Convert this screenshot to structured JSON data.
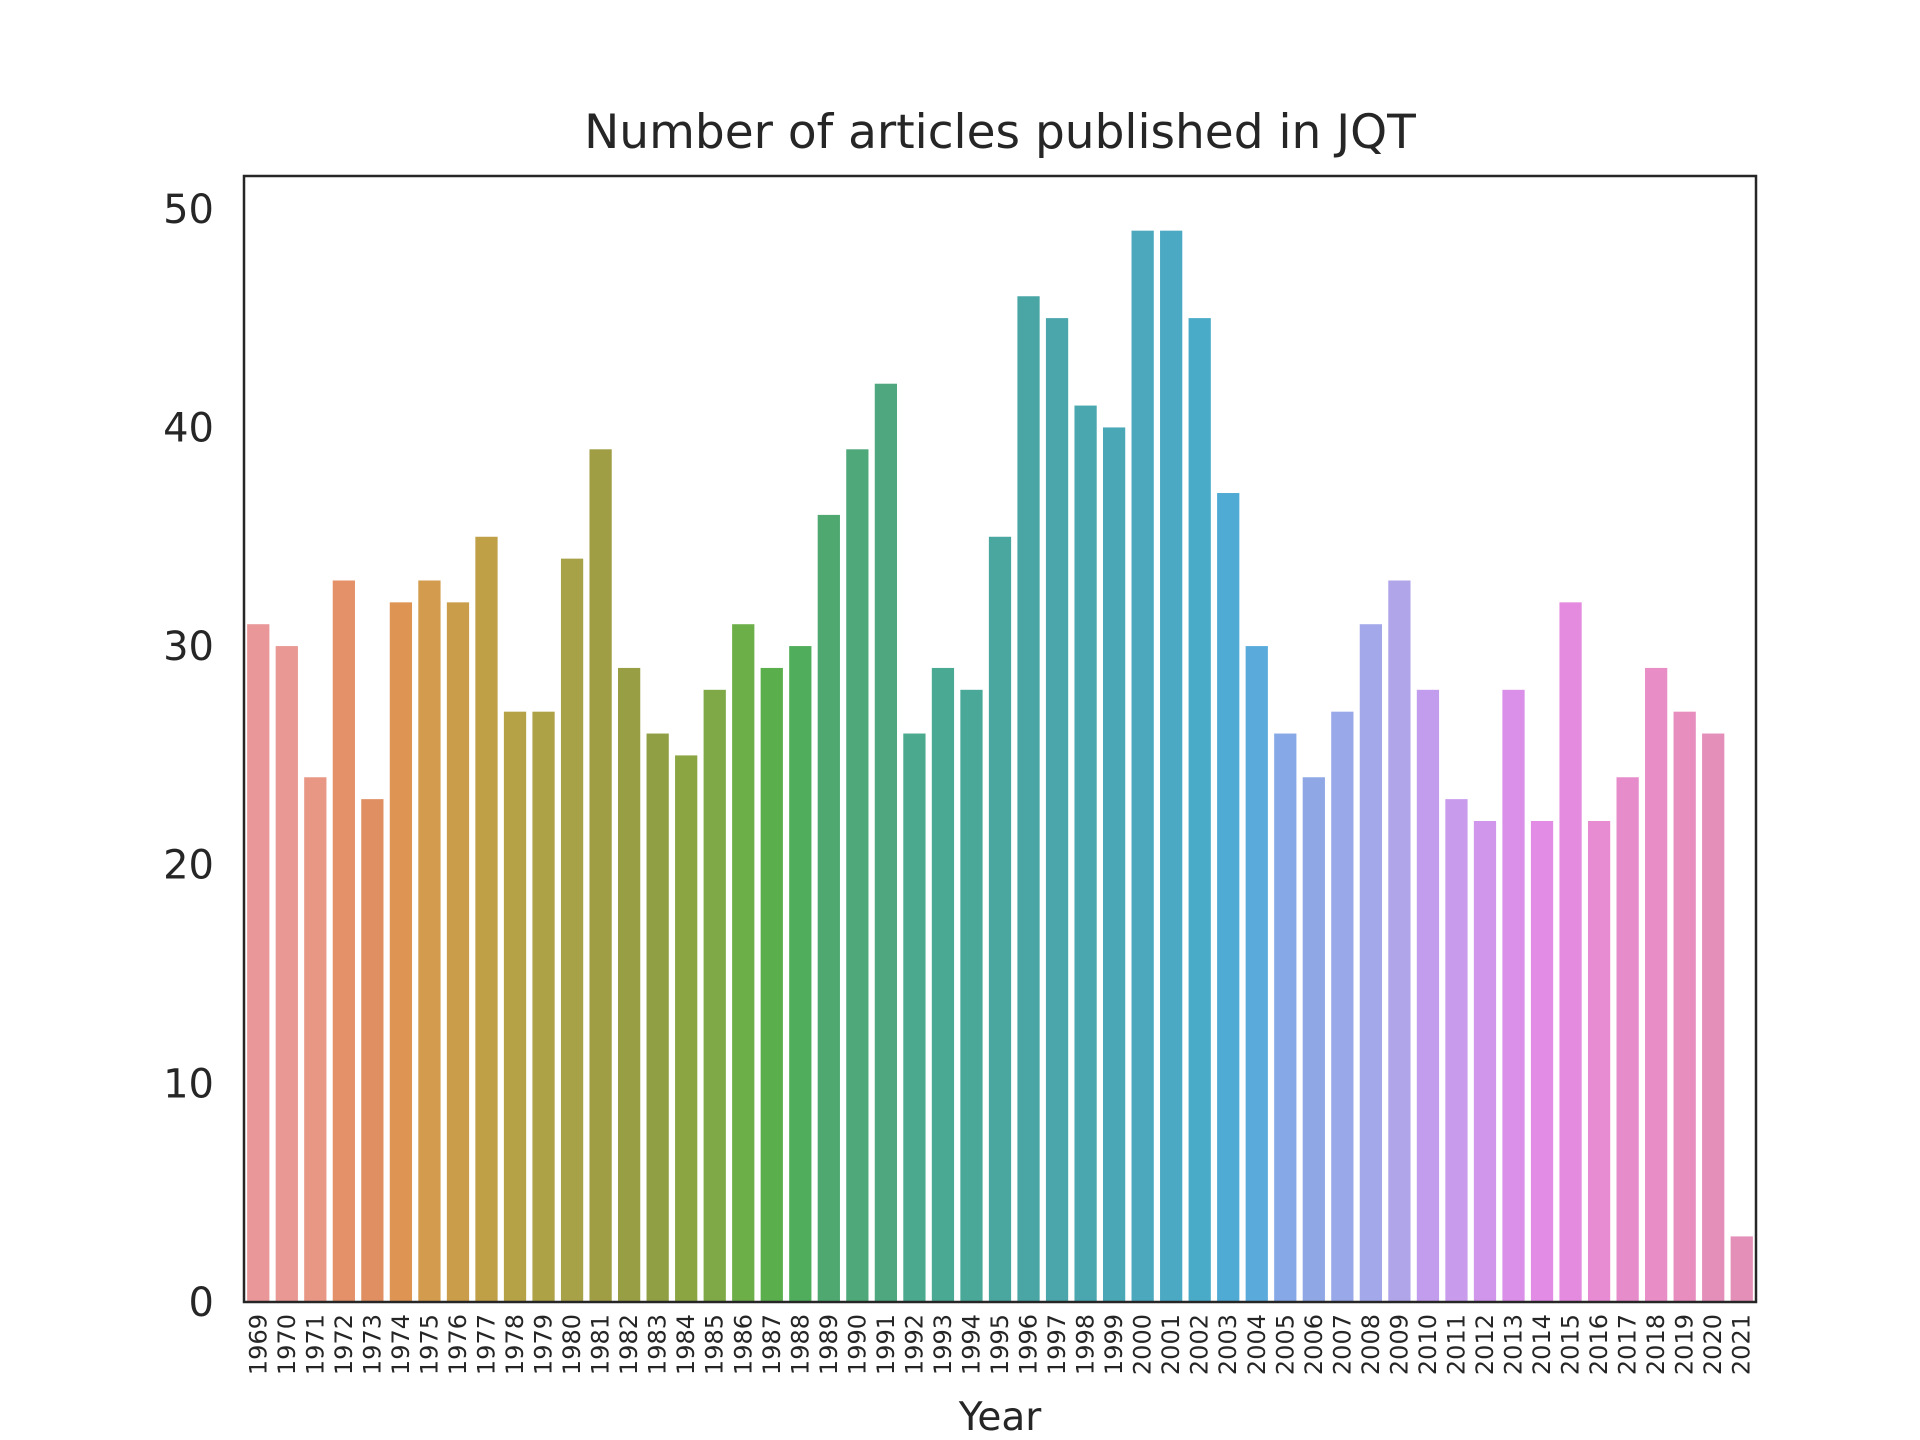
{
  "chart_data": {
    "type": "bar",
    "title": "Number of articles published in JQT",
    "xlabel": "Year",
    "ylabel": "",
    "ylim": [
      0,
      51.5
    ],
    "yticks": [
      0,
      10,
      20,
      30,
      40,
      50
    ],
    "grid": false,
    "categories": [
      "1969",
      "1970",
      "1971",
      "1972",
      "1973",
      "1974",
      "1975",
      "1976",
      "1977",
      "1978",
      "1979",
      "1980",
      "1981",
      "1982",
      "1983",
      "1984",
      "1985",
      "1986",
      "1987",
      "1988",
      "1989",
      "1990",
      "1991",
      "1992",
      "1993",
      "1994",
      "1995",
      "1996",
      "1997",
      "1998",
      "1999",
      "2000",
      "2001",
      "2002",
      "2003",
      "2004",
      "2005",
      "2006",
      "2007",
      "2008",
      "2009",
      "2010",
      "2011",
      "2012",
      "2013",
      "2014",
      "2015",
      "2016",
      "2017",
      "2018",
      "2019",
      "2020",
      "2021"
    ],
    "values": [
      31,
      30,
      24,
      33,
      23,
      32,
      33,
      32,
      35,
      27,
      27,
      34,
      39,
      29,
      26,
      25,
      28,
      31,
      29,
      30,
      36,
      39,
      42,
      26,
      29,
      28,
      35,
      46,
      45,
      41,
      40,
      49,
      49,
      45,
      37,
      30,
      26,
      24,
      27,
      31,
      33,
      28,
      23,
      22,
      28,
      22,
      32,
      22,
      24,
      29,
      27,
      26,
      3
    ],
    "colors": [
      "#ea979a",
      "#ea9893",
      "#e99785",
      "#e49068",
      "#e08f63",
      "#de9452",
      "#d39b4e",
      "#c99d49",
      "#c0a046",
      "#b5a246",
      "#aea247",
      "#a7a148",
      "#a09e44",
      "#989e44",
      "#919f44",
      "#8ba543",
      "#7fa946",
      "#6caf48",
      "#5aae4c",
      "#4fad5b",
      "#4ea870",
      "#4ea879",
      "#4ea77e",
      "#4ba98d",
      "#4aa993",
      "#4aa899",
      "#4aa79f",
      "#4aa6a5",
      "#4aa6aa",
      "#4aa7b0",
      "#4aa7b6",
      "#4ba8bd",
      "#4ba9c3",
      "#4aabc8",
      "#4fabd4",
      "#5aabdc",
      "#86a8e6",
      "#90a7e6",
      "#98a8e8",
      "#a3a8eb",
      "#b1a5ea",
      "#c39ded",
      "#c99bed",
      "#d096ec",
      "#da8fe9",
      "#e28ce6",
      "#e48bdf",
      "#e78cd3",
      "#e78ccb",
      "#e88dc5",
      "#e88ebf",
      "#e48eba",
      "#e38fb7"
    ]
  }
}
